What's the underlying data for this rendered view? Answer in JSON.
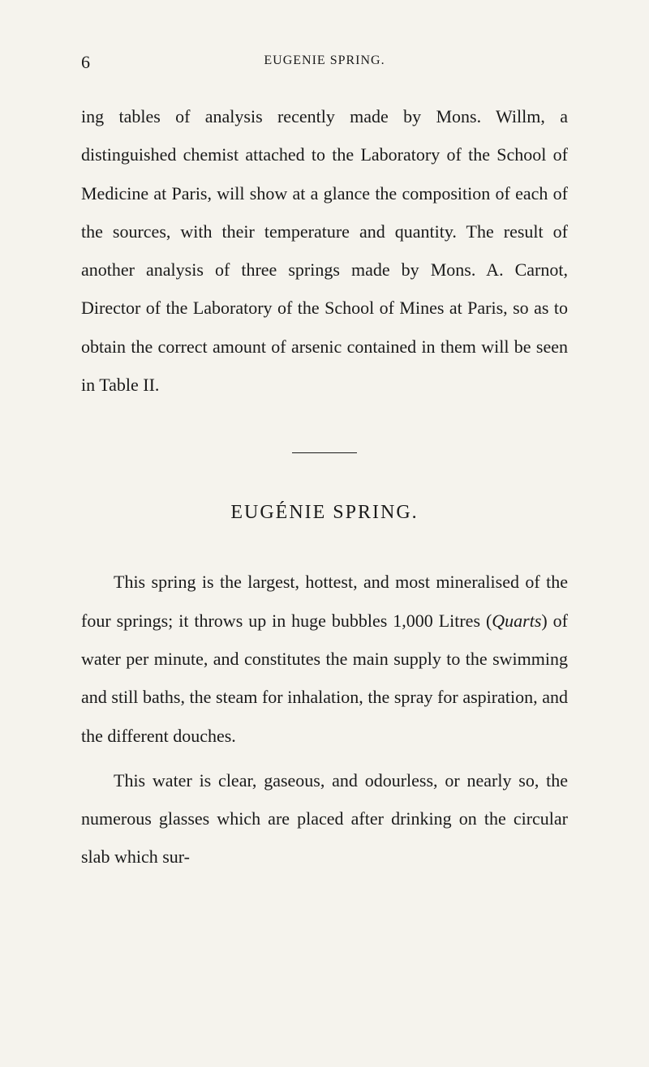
{
  "page": {
    "number": "6",
    "running_header": "EUGENIE SPRING.",
    "paragraph1": "ing tables of analysis recently made by Mons. Willm, a distinguished chemist attached to the Laboratory of the School of Medicine at Paris, will show at a glance the composition of each of the sources, with their temperature and quantity. The result of another analysis of three springs made by Mons. A. Carnot, Director of the Laboratory of the School of Mines at Paris, so as to obtain the correct amount of arsenic contained in them will be seen in Table II.",
    "section_heading": "EUGÉNIE SPRING.",
    "paragraph2_pre": "This spring is the largest, hottest, and most mineralised of the four springs; it throws up in huge bubbles 1,000 Litres (",
    "paragraph2_italic": "Quarts",
    "paragraph2_post": ") of water per minute, and constitutes the main supply to the swimming and still baths, the steam for inhalation, the spray for aspiration, and the different douches.",
    "paragraph3": "This water is clear, gaseous, and odourless, or nearly so, the numerous glasses which are placed after drinking on the circular slab which sur-"
  },
  "style": {
    "background_color": "#f5f3ed",
    "text_color": "#1a1a1a",
    "body_fontsize": 22,
    "heading_fontsize": 24,
    "header_fontsize": 16,
    "line_height": 2.15
  }
}
